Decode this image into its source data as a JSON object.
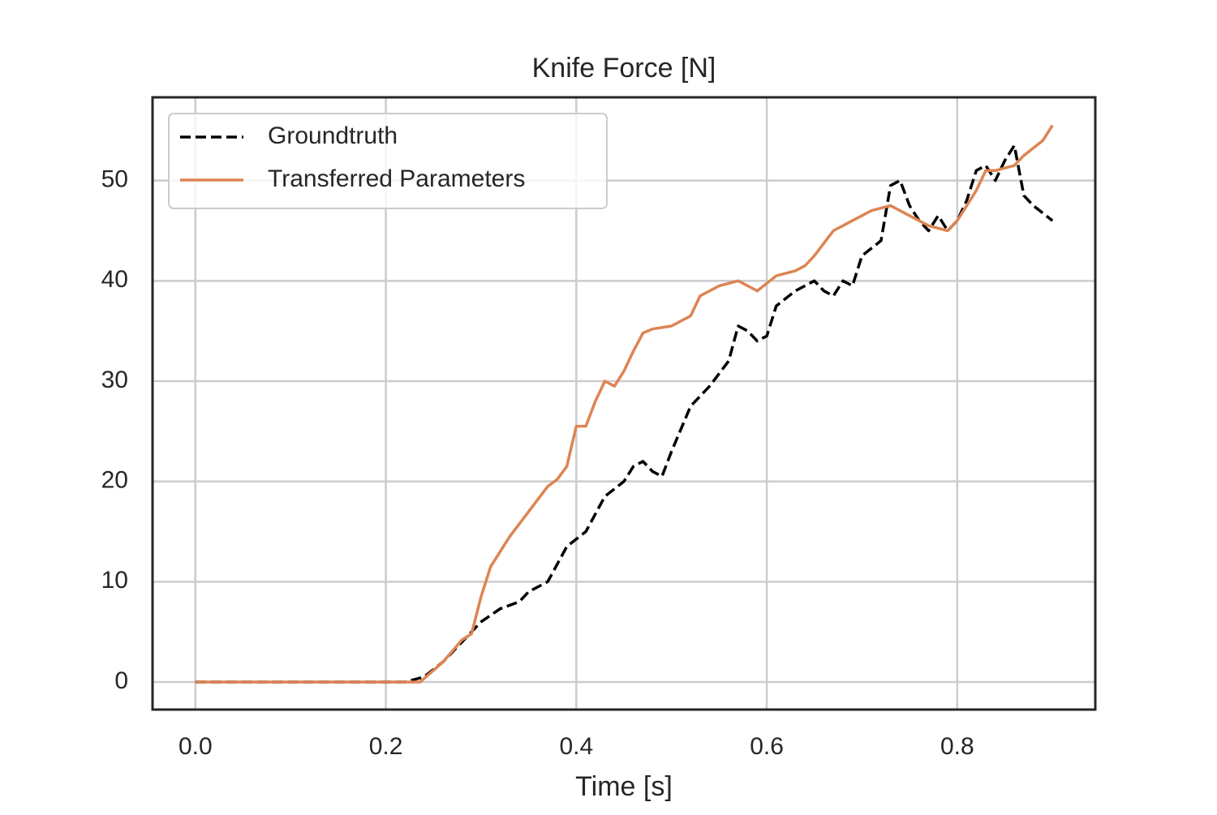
{
  "chart_data": {
    "type": "line",
    "title": "Knife Force [N]",
    "x_label": "Time [s]",
    "xlim": [
      -0.045,
      0.945
    ],
    "ylim": [
      -2.75,
      58.3
    ],
    "xticks": [
      {
        "value": 0,
        "label": "0.0"
      },
      0.2,
      0.4,
      0.6,
      0.8
    ],
    "yticks": [
      0,
      10,
      20,
      30,
      40,
      50
    ],
    "grid": true,
    "legend": "upper left",
    "series": [
      {
        "name": "Groundtruth",
        "color": "#000000",
        "linestyle": "dashed",
        "x": [
          0,
          0.22,
          0.24,
          0.26,
          0.28,
          0.3,
          0.32,
          0.34,
          0.35,
          0.37,
          0.39,
          0.41,
          0.43,
          0.45,
          0.46,
          0.47,
          0.48,
          0.49,
          0.5,
          0.52,
          0.54,
          0.56,
          0.57,
          0.58,
          0.59,
          0.6,
          0.61,
          0.63,
          0.65,
          0.66,
          0.67,
          0.68,
          0.69,
          0.7,
          0.72,
          0.73,
          0.74,
          0.75,
          0.76,
          0.77,
          0.78,
          0.79,
          0.8,
          0.81,
          0.82,
          0.83,
          0.84,
          0.85,
          0.86,
          0.87,
          0.88,
          0.9
        ],
        "values": [
          0,
          0,
          0.5,
          2,
          4,
          6,
          7.3,
          8,
          9,
          10,
          13.5,
          15,
          18.5,
          20,
          21.5,
          22,
          21,
          20.5,
          23,
          27.5,
          29.5,
          32,
          35.5,
          35,
          34,
          34.5,
          37.5,
          39,
          40,
          39,
          38.5,
          40,
          39.5,
          42.5,
          44,
          49.5,
          50,
          47.5,
          46,
          45,
          46.5,
          45,
          46,
          48,
          51,
          51.5,
          50,
          52,
          53.5,
          48.5,
          47.5,
          46
        ]
      },
      {
        "name": "Transferred Parameters",
        "color": "#dd8452",
        "linestyle": "solid",
        "x": [
          0,
          0.236,
          0.26,
          0.28,
          0.29,
          0.3,
          0.31,
          0.33,
          0.35,
          0.37,
          0.38,
          0.39,
          0.4,
          0.41,
          0.42,
          0.43,
          0.44,
          0.45,
          0.46,
          0.47,
          0.48,
          0.5,
          0.52,
          0.53,
          0.55,
          0.57,
          0.58,
          0.59,
          0.61,
          0.63,
          0.64,
          0.65,
          0.67,
          0.69,
          0.71,
          0.73,
          0.75,
          0.77,
          0.79,
          0.8,
          0.82,
          0.83,
          0.84,
          0.86,
          0.87,
          0.89,
          0.9
        ],
        "values": [
          0,
          0,
          2,
          4.2,
          4.8,
          8.5,
          11.5,
          14.5,
          17,
          19.5,
          20.2,
          21.5,
          25.5,
          25.5,
          28,
          30,
          29.5,
          31,
          33,
          34.8,
          35.2,
          35.5,
          36.5,
          38.5,
          39.5,
          40,
          39.5,
          39,
          40.5,
          41,
          41.5,
          42.5,
          45,
          46,
          47,
          47.5,
          46.5,
          45.5,
          45,
          46,
          49,
          51,
          51,
          51.5,
          52.5,
          54,
          55.5
        ]
      }
    ]
  }
}
